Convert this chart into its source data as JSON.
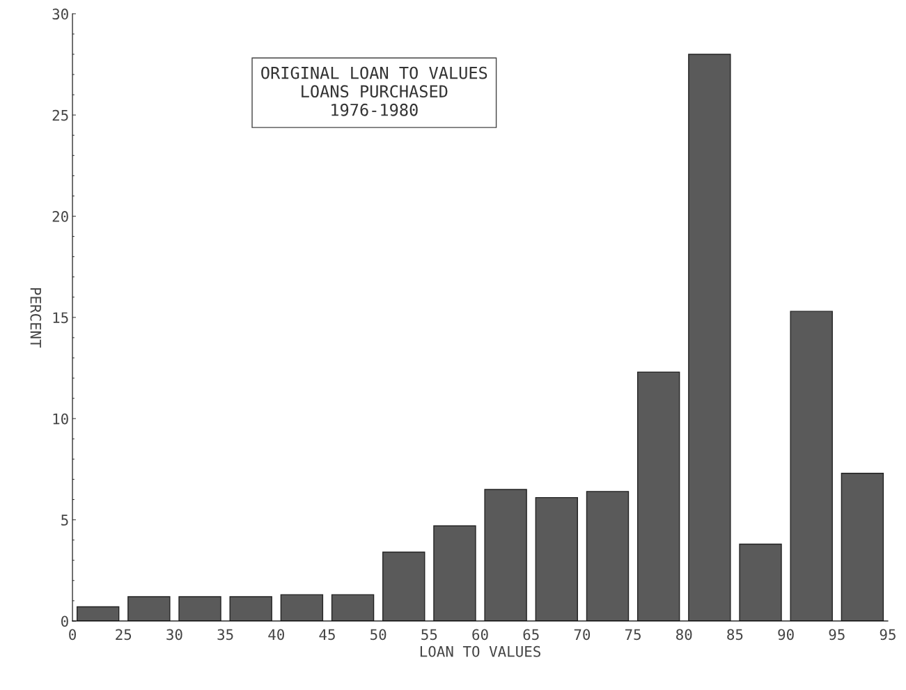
{
  "chart_data": {
    "type": "bar",
    "title": "ORIGINAL LOAN TO VALUES\nLOANS PURCHASED\n1976-1980",
    "xlabel": "LOAN TO VALUES",
    "ylabel": "PERCENT",
    "categories": [
      null,
      null,
      null,
      null,
      null,
      null,
      null,
      null,
      null,
      null,
      null,
      null,
      null,
      null,
      null,
      null
    ],
    "values": [
      0.7,
      1.2,
      1.2,
      1.2,
      1.3,
      1.3,
      3.4,
      4.7,
      6.5,
      6.1,
      6.4,
      12.3,
      28.0,
      3.8,
      15.3,
      7.3
    ],
    "color": "#5a5a5a",
    "annotations": [
      "0",
      "25",
      "30",
      "35",
      "40",
      "45",
      "50",
      "55",
      "60",
      "65",
      "70",
      "75",
      "80",
      "85",
      "90",
      "95",
      "95"
    ],
    "ylim": [
      0,
      30
    ],
    "yticks": [
      0,
      5,
      10,
      15,
      20,
      25,
      30
    ],
    "grid": false,
    "legend": false
  }
}
